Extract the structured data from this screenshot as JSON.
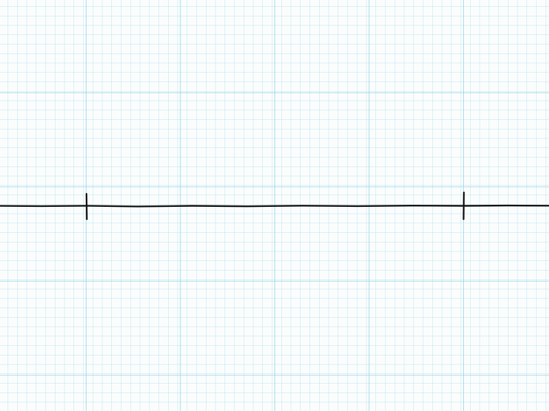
{
  "paper": {
    "background_color": "#fbfdfd",
    "minor_grid_color": "#b5e2ec",
    "major_grid_color": "#8fd3e3"
  },
  "number_line": {
    "line_color": "#111111",
    "tick_count": 2,
    "labels": []
  }
}
